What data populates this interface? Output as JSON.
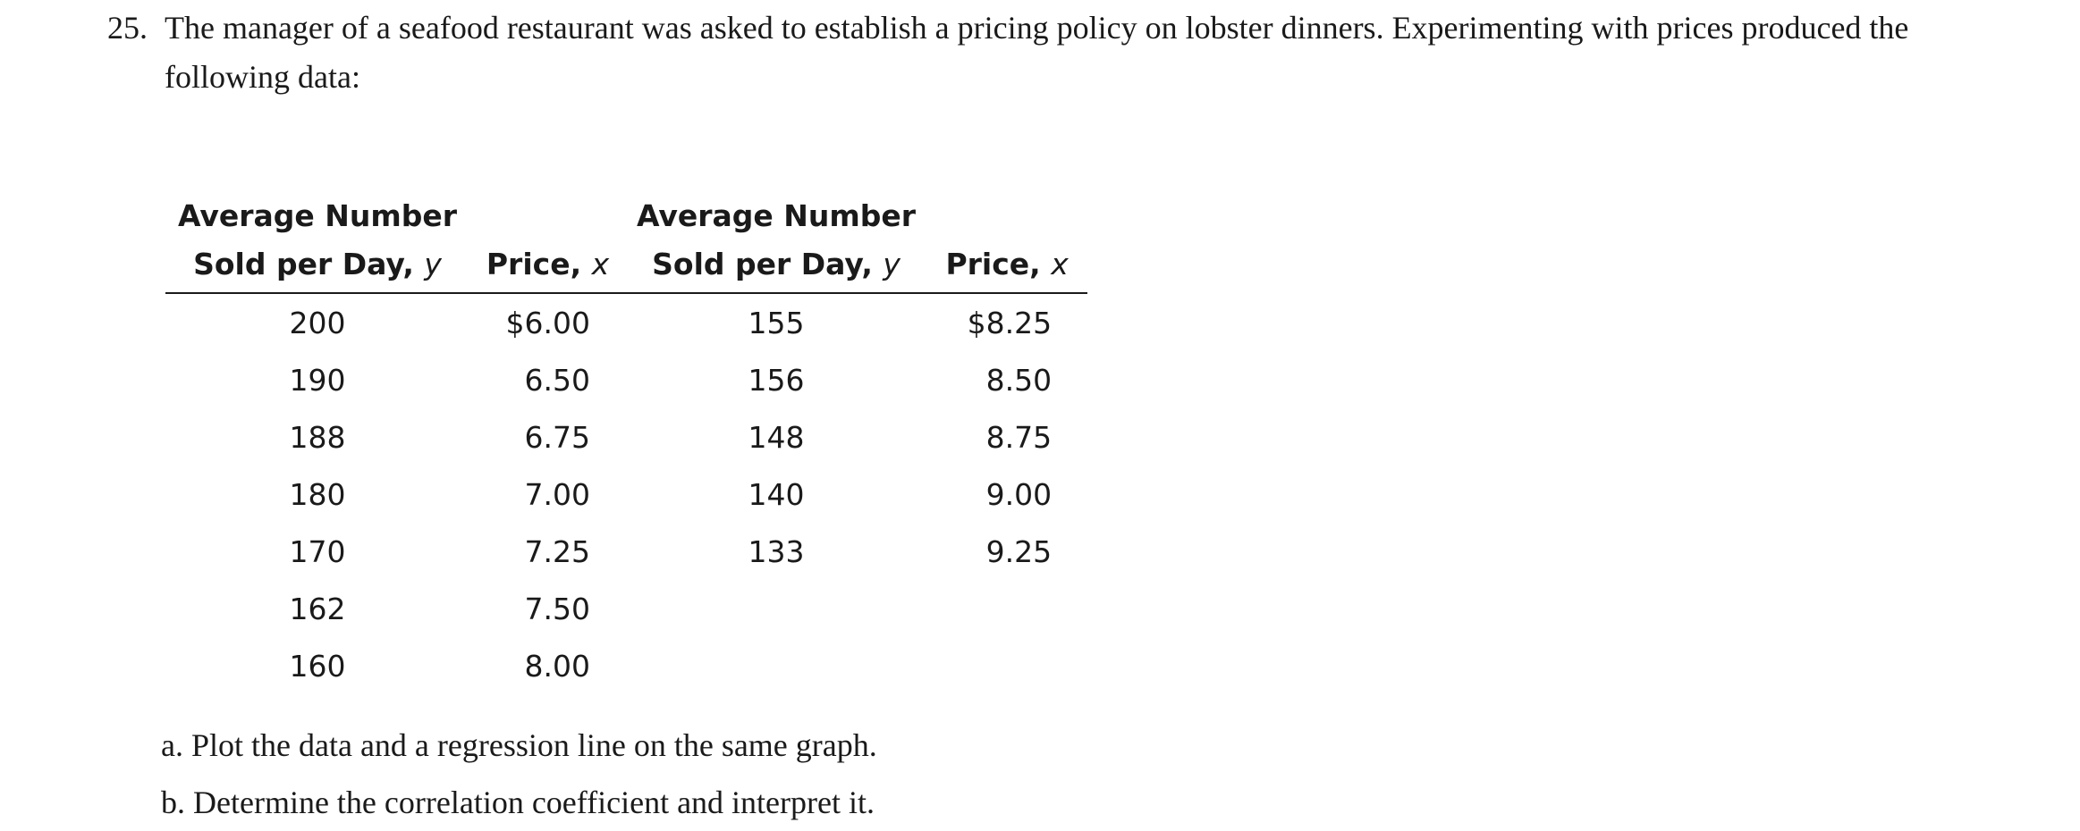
{
  "problem": {
    "number": "25.",
    "text": "The manager of a seafood restaurant was asked to establish a pricing policy on lobster dinners. Experimenting with prices produced the following data:"
  },
  "table": {
    "headers": {
      "col1_line1": "Average Number",
      "col1_line2_main": "Sold per Day, ",
      "col1_line2_var": "y",
      "col2_main": "Price, ",
      "col2_var": "x",
      "col3_line1": "Average Number",
      "col3_line2_main": "Sold per Day, ",
      "col3_line2_var": "y",
      "col4_main": "Price, ",
      "col4_var": "x"
    },
    "rows": [
      [
        "200",
        "$6.00",
        "155",
        "$8.25"
      ],
      [
        "190",
        "6.50",
        "156",
        "8.50"
      ],
      [
        "188",
        "6.75",
        "148",
        "8.75"
      ],
      [
        "180",
        "7.00",
        "140",
        "9.00"
      ],
      [
        "170",
        "7.25",
        "133",
        "9.25"
      ],
      [
        "162",
        "7.50",
        "",
        ""
      ],
      [
        "160",
        "8.00",
        "",
        ""
      ]
    ]
  },
  "questions": {
    "a": "a.  Plot the data and a regression line on the same graph.",
    "b": "b.  Determine the correlation coefficient and interpret it."
  }
}
